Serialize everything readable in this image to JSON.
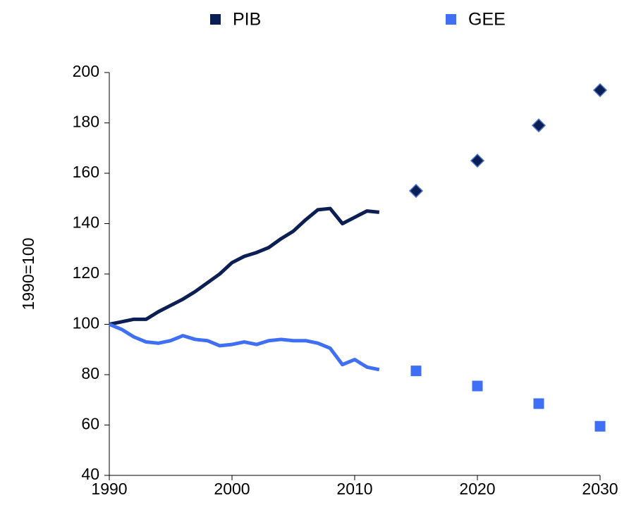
{
  "chart_data": {
    "type": "line",
    "y_label": "1990=100",
    "x": [
      1990,
      1991,
      1992,
      1993,
      1994,
      1995,
      1996,
      1997,
      1998,
      1999,
      2000,
      2001,
      2002,
      2003,
      2004,
      2005,
      2006,
      2007,
      2008,
      2009,
      2010,
      2011,
      2012
    ],
    "projection_x": [
      2015,
      2020,
      2025,
      2030
    ],
    "series": [
      {
        "name": "PIB",
        "color": "#0c1f55",
        "marker": "diamond",
        "values": [
          100,
          101,
          102,
          102,
          105,
          107.5,
          110,
          113,
          116.5,
          120,
          124.5,
          127,
          128.5,
          130.5,
          134,
          137,
          141.5,
          145.5,
          146,
          140,
          142.5,
          145,
          144.5
        ],
        "projection_values": [
          153,
          165,
          179,
          193
        ]
      },
      {
        "name": "GEE",
        "color": "#3f6ff5",
        "marker": "square",
        "values": [
          100,
          98,
          95,
          93,
          92.5,
          93.5,
          95.5,
          94,
          93.5,
          91.5,
          92,
          93,
          92,
          93.5,
          94,
          93.5,
          93.5,
          92.5,
          90.5,
          84,
          86,
          83,
          82
        ],
        "projection_values": [
          81.5,
          75.5,
          68.5,
          59.5
        ]
      }
    ],
    "xlim": [
      1990,
      2030
    ],
    "xticks": [
      1990,
      2000,
      2010,
      2020,
      2030
    ],
    "ylim": [
      40,
      200
    ],
    "yticks": [
      40,
      60,
      80,
      100,
      120,
      140,
      160,
      180,
      200
    ],
    "grid": false,
    "legend": "top"
  }
}
